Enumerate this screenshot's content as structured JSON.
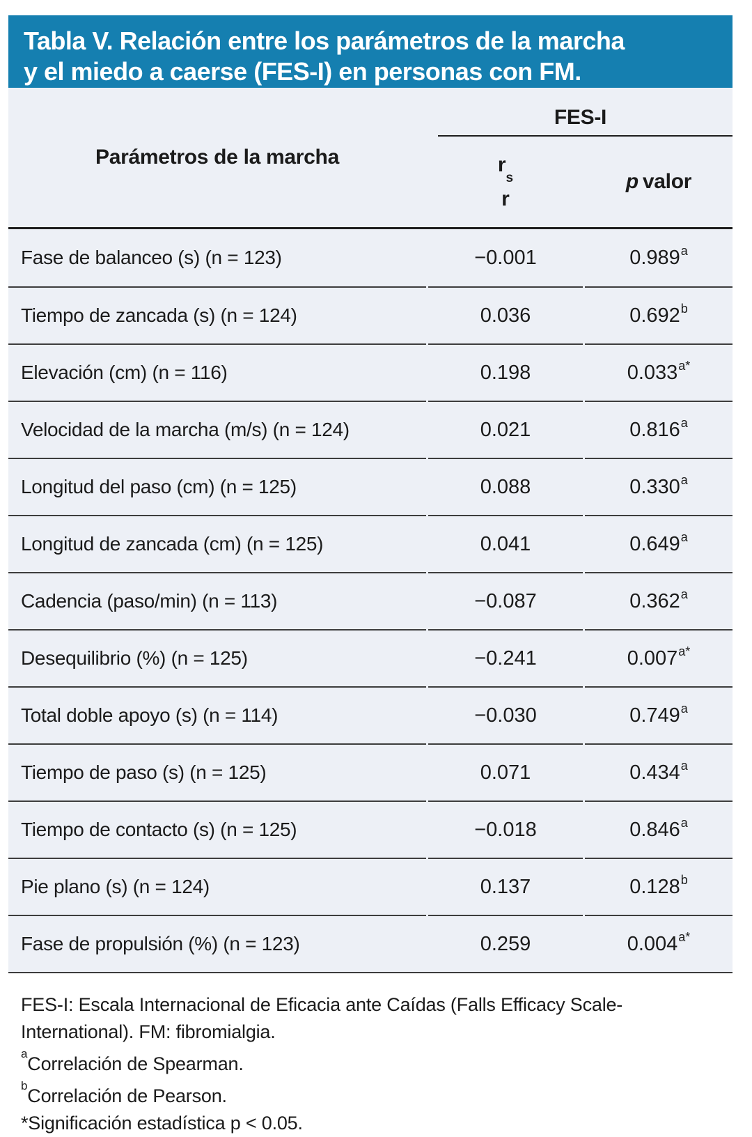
{
  "title": {
    "line1": "Tabla V. Relación entre los parámetros de la marcha",
    "line2": "y el miedo a caerse (FES-I) en personas con FM."
  },
  "header": {
    "param_col": "Parámetros de la marcha",
    "group": "FES-I",
    "rs": {
      "main": "r",
      "sub": "s",
      "second": "r"
    },
    "p_col": {
      "italic": "p",
      "rest": "valor"
    }
  },
  "rows": [
    {
      "label": "Fase de balanceo (s) (n = 123)",
      "rs": "−0.001",
      "p": "0.989",
      "p_sup": "a"
    },
    {
      "label": "Tiempo de zancada (s) (n = 124)",
      "rs": "0.036",
      "p": "0.692",
      "p_sup": "b"
    },
    {
      "label": "Elevación (cm) (n = 116)",
      "rs": "0.198",
      "p": "0.033",
      "p_sup": "a*"
    },
    {
      "label": "Velocidad de la marcha (m/s) (n = 124)",
      "rs": "0.021",
      "p": "0.816",
      "p_sup": "a"
    },
    {
      "label": "Longitud del paso (cm) (n = 125)",
      "rs": "0.088",
      "p": "0.330",
      "p_sup": "a"
    },
    {
      "label": "Longitud de zancada (cm) (n = 125)",
      "rs": "0.041",
      "p": "0.649",
      "p_sup": "a"
    },
    {
      "label": "Cadencia (paso/min) (n = 113)",
      "rs": "−0.087",
      "p": "0.362",
      "p_sup": "a"
    },
    {
      "label": "Desequilibrio (%) (n = 125)",
      "rs": "−0.241",
      "p": "0.007",
      "p_sup": "a*"
    },
    {
      "label": "Total doble apoyo (s) (n = 114)",
      "rs": "−0.030",
      "p": "0.749",
      "p_sup": "a"
    },
    {
      "label": "Tiempo de paso (s) (n = 125)",
      "rs": "0.071",
      "p": "0.434",
      "p_sup": "a"
    },
    {
      "label": "Tiempo de contacto (s) (n = 125)",
      "rs": "−0.018",
      "p": "0.846",
      "p_sup": "a"
    },
    {
      "label": "Pie plano (s) (n = 124)",
      "rs": "0.137",
      "p": "0.128",
      "p_sup": "b"
    },
    {
      "label": "Fase de propulsión (%) (n = 123)",
      "rs": "0.259",
      "p": "0.004",
      "p_sup": "a*"
    }
  ],
  "footnotes": {
    "line1": "FES-I: Escala Internacional de Eficacia ante Caídas (Falls Efficacy Scale-",
    "line2": "International). FM: fibromialgia.",
    "spearman": {
      "sup": "a",
      "text": "Correlación de Spearman."
    },
    "pearson": {
      "sup": "b",
      "text": "Correlación de Pearson."
    },
    "significance": "*Significación estadística p < 0.05."
  },
  "colors": {
    "title_bar": "#157FB0",
    "title_text": "#FFFFFF",
    "table_background": "#EDF0F6",
    "text": "#1B1B1B",
    "row_divider": "#3D3D3D",
    "header_border": "#1D1D1D"
  }
}
